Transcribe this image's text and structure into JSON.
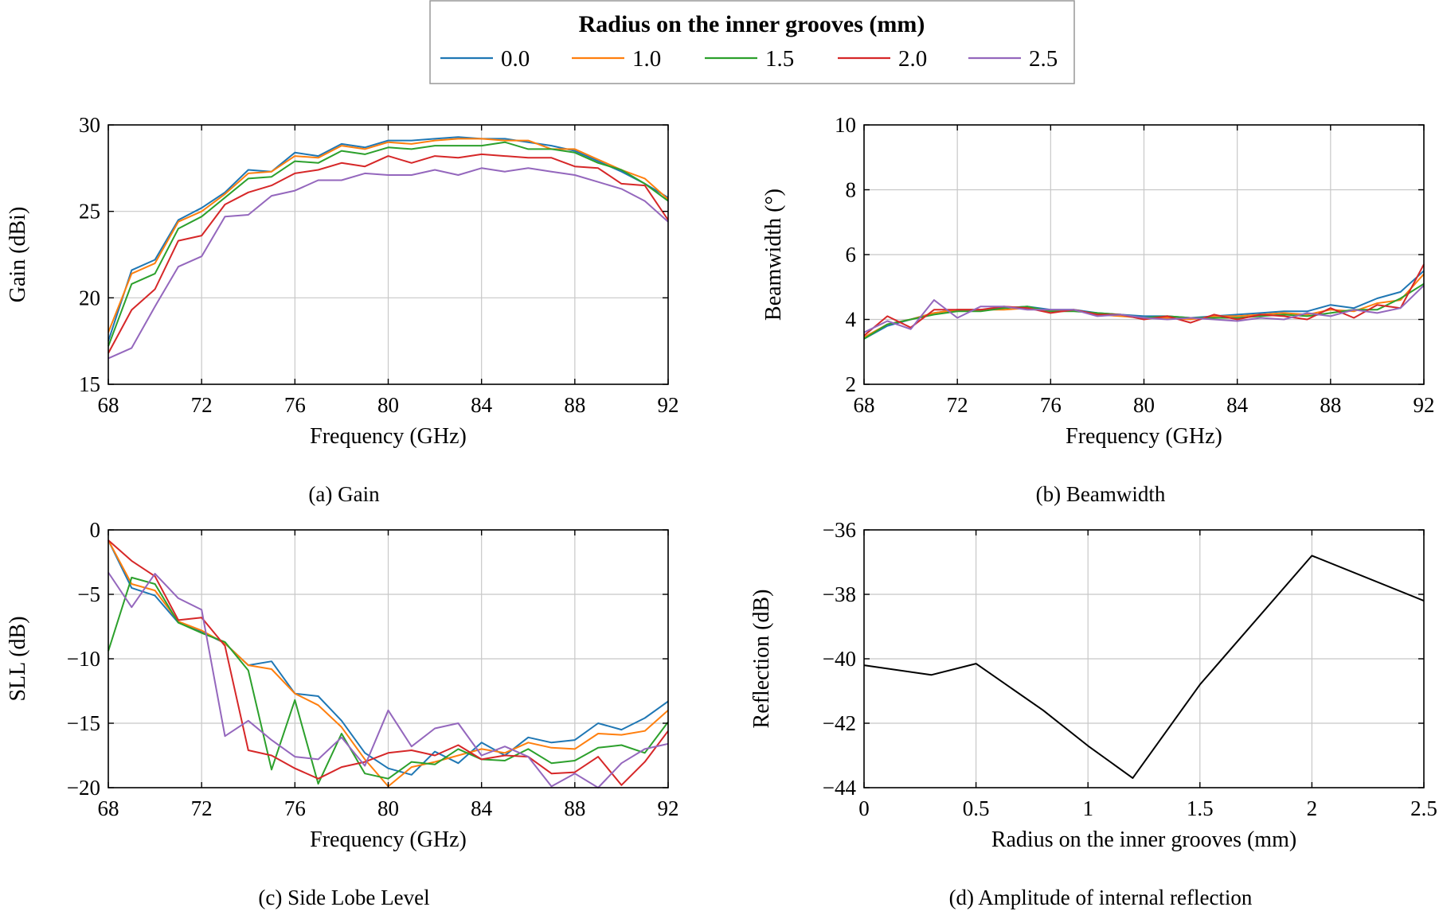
{
  "legend": {
    "title": "Radius on the inner grooves (mm)",
    "entries": [
      {
        "label": "0.0",
        "color": "#1f77b4"
      },
      {
        "label": "1.0",
        "color": "#ff7f0e"
      },
      {
        "label": "1.5",
        "color": "#2ca02c"
      },
      {
        "label": "2.0",
        "color": "#d62728"
      },
      {
        "label": "2.5",
        "color": "#9467bd"
      }
    ]
  },
  "chart_data": [
    {
      "id": "gain",
      "type": "line",
      "caption": "(a) Gain",
      "xlabel": "Frequency (GHz)",
      "ylabel": "Gain (dBi)",
      "xlim": [
        68,
        92
      ],
      "ylim": [
        15,
        30
      ],
      "xticks": [
        68,
        72,
        76,
        80,
        84,
        88,
        92
      ],
      "yticks": [
        15,
        20,
        25,
        30
      ],
      "grid": true,
      "x": [
        68,
        69,
        70,
        71,
        72,
        73,
        74,
        75,
        76,
        77,
        78,
        79,
        80,
        81,
        82,
        83,
        84,
        85,
        86,
        87,
        88,
        89,
        90,
        91,
        92
      ],
      "series": [
        {
          "name": "0.0",
          "values": [
            17.5,
            21.6,
            22.2,
            24.5,
            25.2,
            26.1,
            27.4,
            27.3,
            28.4,
            28.2,
            28.9,
            28.7,
            29.1,
            29.1,
            29.2,
            29.3,
            29.2,
            29.2,
            29.0,
            28.8,
            28.5,
            27.9,
            27.3,
            26.6,
            25.8
          ]
        },
        {
          "name": "1.0",
          "values": [
            18.0,
            21.4,
            22.0,
            24.4,
            25.0,
            26.0,
            27.2,
            27.3,
            28.2,
            28.1,
            28.8,
            28.6,
            29.0,
            28.9,
            29.1,
            29.2,
            29.2,
            29.1,
            29.1,
            28.6,
            28.6,
            28.0,
            27.4,
            26.9,
            25.7
          ]
        },
        {
          "name": "1.5",
          "values": [
            17.2,
            20.8,
            21.4,
            24.0,
            24.7,
            25.8,
            26.9,
            27.0,
            27.9,
            27.8,
            28.5,
            28.3,
            28.7,
            28.6,
            28.8,
            28.8,
            28.8,
            29.0,
            28.6,
            28.6,
            28.4,
            27.8,
            27.4,
            26.6,
            25.6
          ]
        },
        {
          "name": "2.0",
          "values": [
            16.8,
            19.3,
            20.5,
            23.3,
            23.6,
            25.4,
            26.1,
            26.5,
            27.2,
            27.4,
            27.8,
            27.6,
            28.2,
            27.8,
            28.2,
            28.1,
            28.3,
            28.2,
            28.1,
            28.1,
            27.6,
            27.5,
            26.6,
            26.5,
            24.5
          ]
        },
        {
          "name": "2.5",
          "values": [
            16.5,
            17.1,
            19.5,
            21.8,
            22.4,
            24.7,
            24.8,
            25.9,
            26.2,
            26.8,
            26.8,
            27.2,
            27.1,
            27.1,
            27.4,
            27.1,
            27.5,
            27.3,
            27.5,
            27.3,
            27.1,
            26.7,
            26.3,
            25.6,
            24.4
          ]
        }
      ]
    },
    {
      "id": "beamwidth",
      "type": "line",
      "caption": "(b) Beamwidth",
      "xlabel": "Frequency (GHz)",
      "ylabel": "Beamwidth (°)",
      "xlim": [
        68,
        92
      ],
      "ylim": [
        2,
        10
      ],
      "xticks": [
        68,
        72,
        76,
        80,
        84,
        88,
        92
      ],
      "yticks": [
        2,
        4,
        6,
        8,
        10
      ],
      "grid": true,
      "x": [
        68,
        69,
        70,
        71,
        72,
        73,
        74,
        75,
        76,
        77,
        78,
        79,
        80,
        81,
        82,
        83,
        84,
        85,
        86,
        87,
        88,
        89,
        90,
        91,
        92
      ],
      "series": [
        {
          "name": "0.0",
          "values": [
            3.4,
            3.8,
            4.0,
            4.2,
            4.3,
            4.3,
            4.35,
            4.4,
            4.3,
            4.3,
            4.2,
            4.15,
            4.1,
            4.1,
            4.05,
            4.1,
            4.15,
            4.2,
            4.25,
            4.25,
            4.45,
            4.35,
            4.65,
            4.85,
            5.5
          ]
        },
        {
          "name": "1.0",
          "values": [
            3.45,
            3.85,
            4.0,
            4.2,
            4.3,
            4.3,
            4.3,
            4.35,
            4.25,
            4.3,
            4.15,
            4.1,
            4.05,
            4.05,
            4.0,
            4.1,
            4.1,
            4.15,
            4.2,
            4.15,
            4.3,
            4.25,
            4.5,
            4.6,
            5.4
          ]
        },
        {
          "name": "1.5",
          "values": [
            3.4,
            3.85,
            4.0,
            4.15,
            4.25,
            4.25,
            4.35,
            4.4,
            4.25,
            4.25,
            4.2,
            4.15,
            4.05,
            4.1,
            4.05,
            4.05,
            4.05,
            4.1,
            4.15,
            4.1,
            4.2,
            4.3,
            4.3,
            4.65,
            5.1
          ]
        },
        {
          "name": "2.0",
          "values": [
            3.5,
            4.1,
            3.75,
            4.3,
            4.3,
            4.3,
            4.4,
            4.35,
            4.2,
            4.3,
            4.15,
            4.15,
            4.0,
            4.1,
            3.9,
            4.15,
            4.0,
            4.15,
            4.1,
            4.0,
            4.35,
            4.05,
            4.45,
            4.35,
            5.7
          ]
        },
        {
          "name": "2.5",
          "values": [
            3.6,
            3.95,
            3.7,
            4.6,
            4.05,
            4.4,
            4.4,
            4.3,
            4.3,
            4.3,
            4.1,
            4.15,
            4.05,
            4.0,
            4.05,
            4.0,
            3.95,
            4.05,
            4.0,
            4.2,
            4.1,
            4.3,
            4.2,
            4.35,
            5.05
          ]
        }
      ]
    },
    {
      "id": "sll",
      "type": "line",
      "caption": "(c) Side Lobe Level",
      "xlabel": "Frequency (GHz)",
      "ylabel": "SLL (dB)",
      "xlim": [
        68,
        92
      ],
      "ylim": [
        -20,
        0
      ],
      "xticks": [
        68,
        72,
        76,
        80,
        84,
        88,
        92
      ],
      "yticks": [
        -20,
        -15,
        -10,
        -5,
        0
      ],
      "ytick_labels": [
        "−20",
        "−15",
        "−10",
        "−5",
        "0"
      ],
      "grid": true,
      "x": [
        68,
        69,
        70,
        71,
        72,
        73,
        74,
        75,
        76,
        77,
        78,
        79,
        80,
        81,
        82,
        83,
        84,
        85,
        86,
        87,
        88,
        89,
        90,
        91,
        92
      ],
      "series": [
        {
          "name": "0.0",
          "values": [
            -0.8,
            -4.5,
            -5.1,
            -7.2,
            -7.9,
            -8.8,
            -10.5,
            -10.2,
            -12.7,
            -12.9,
            -14.8,
            -17.3,
            -18.5,
            -19.0,
            -17.2,
            -18.1,
            -16.5,
            -17.5,
            -16.1,
            -16.5,
            -16.3,
            -15.0,
            -15.5,
            -14.6,
            -13.3
          ]
        },
        {
          "name": "1.0",
          "values": [
            -0.8,
            -4.2,
            -4.7,
            -7.1,
            -7.8,
            -8.8,
            -10.5,
            -10.8,
            -12.7,
            -13.6,
            -15.3,
            -17.8,
            -19.9,
            -18.4,
            -18.0,
            -17.5,
            -17.0,
            -17.3,
            -16.5,
            -16.9,
            -17.0,
            -15.8,
            -15.9,
            -15.6,
            -14.0
          ]
        },
        {
          "name": "1.5",
          "values": [
            -9.4,
            -3.7,
            -4.2,
            -7.2,
            -8.0,
            -8.7,
            -10.9,
            -18.6,
            -13.2,
            -19.7,
            -15.8,
            -18.9,
            -19.3,
            -18.0,
            -18.2,
            -17.0,
            -17.8,
            -17.9,
            -17.0,
            -18.1,
            -17.9,
            -16.9,
            -16.7,
            -17.3,
            -14.9
          ]
        },
        {
          "name": "2.0",
          "values": [
            -0.8,
            -2.4,
            -3.6,
            -7.0,
            -6.8,
            -9.0,
            -17.1,
            -17.5,
            -18.5,
            -19.3,
            -18.4,
            -18.0,
            -17.3,
            -17.1,
            -17.5,
            -16.7,
            -17.8,
            -17.5,
            -17.6,
            -18.9,
            -18.8,
            -17.6,
            -19.8,
            -18.0,
            -15.6
          ]
        },
        {
          "name": "2.5",
          "values": [
            -3.3,
            -6.0,
            -3.4,
            -5.3,
            -6.2,
            -16.0,
            -14.8,
            -16.3,
            -17.6,
            -17.8,
            -16.1,
            -18.3,
            -14.0,
            -16.8,
            -15.4,
            -15.0,
            -17.5,
            -16.8,
            -17.6,
            -19.9,
            -18.9,
            -20.0,
            -18.1,
            -17.0,
            -16.6
          ]
        }
      ]
    },
    {
      "id": "reflection",
      "type": "line",
      "caption": "(d) Amplitude of internal reflection",
      "xlabel": "Radius on the inner grooves (mm)",
      "ylabel": "Reflection (dB)",
      "xlim": [
        0,
        2.5
      ],
      "ylim": [
        -44,
        -36
      ],
      "xticks": [
        0,
        0.5,
        1,
        1.5,
        2,
        2.5
      ],
      "yticks": [
        -44,
        -42,
        -40,
        -38,
        -36
      ],
      "ytick_labels": [
        "−44",
        "−42",
        "−40",
        "−38",
        "−36"
      ],
      "grid": true,
      "x": [
        0,
        0.3,
        0.5,
        0.8,
        1.0,
        1.2,
        1.5,
        2.0,
        2.5
      ],
      "series": [
        {
          "values": [
            -40.2,
            -40.5,
            -40.15,
            -41.6,
            -42.7,
            -43.7,
            -40.8,
            -36.8,
            -38.2
          ],
          "color": "#000000"
        }
      ]
    }
  ]
}
